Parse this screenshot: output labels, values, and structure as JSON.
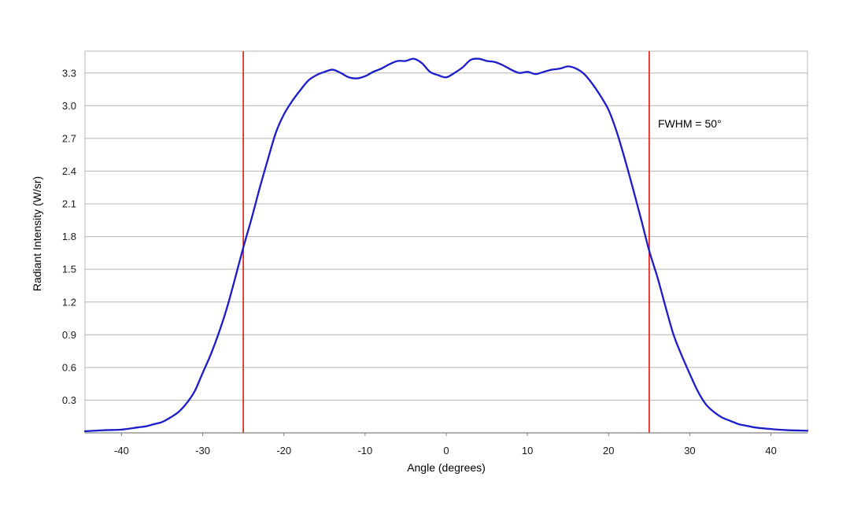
{
  "chart_data": {
    "type": "line",
    "title": "",
    "xlabel": "Angle (degrees)",
    "ylabel": "Radiant Intensity (W/sr)",
    "xlim": [
      -44.5,
      44.5
    ],
    "ylim": [
      0,
      3.5
    ],
    "xticks": [
      -40,
      -30,
      -20,
      -10,
      0,
      10,
      20,
      30,
      40
    ],
    "xtick_labels": [
      "-40",
      "-30",
      "-20",
      "-10",
      "0",
      "10",
      "20",
      "30",
      "40"
    ],
    "yticks": [
      0.3,
      0.6,
      0.9,
      1.2,
      1.5,
      1.8,
      2.1,
      2.4,
      2.7,
      3.0,
      3.3
    ],
    "ytick_labels": [
      "0.3",
      "0.6",
      "0.9",
      "1.2",
      "1.5",
      "1.8",
      "2.1",
      "2.4",
      "2.7",
      "3.0",
      "3.3"
    ],
    "grid": true,
    "series": [
      {
        "x": [
          -44.5,
          -42,
          -40,
          -38,
          -37,
          -36,
          -35,
          -34,
          -33,
          -32,
          -31,
          -30,
          -29,
          -28,
          -27,
          -26,
          -25,
          -24,
          -23,
          -22,
          -21,
          -20,
          -19,
          -18,
          -17,
          -16,
          -15,
          -14,
          -13,
          -12,
          -11,
          -10,
          -9,
          -8,
          -7,
          -6,
          -5,
          -4,
          -3,
          -2,
          -1,
          0,
          1,
          2,
          3,
          4,
          5,
          6,
          7,
          8,
          9,
          10,
          11,
          12,
          13,
          14,
          15,
          16,
          17,
          18,
          19,
          20,
          21,
          22,
          23,
          24,
          25,
          26,
          27,
          28,
          29,
          30,
          31,
          32,
          33,
          34,
          35,
          36,
          37,
          38,
          40,
          42,
          44.5
        ],
        "values": [
          0.015,
          0.025,
          0.03,
          0.05,
          0.06,
          0.08,
          0.1,
          0.14,
          0.19,
          0.27,
          0.38,
          0.55,
          0.72,
          0.92,
          1.15,
          1.42,
          1.7,
          1.96,
          2.24,
          2.5,
          2.75,
          2.92,
          3.04,
          3.14,
          3.23,
          3.28,
          3.31,
          3.33,
          3.3,
          3.26,
          3.25,
          3.27,
          3.31,
          3.34,
          3.38,
          3.41,
          3.41,
          3.43,
          3.39,
          3.31,
          3.28,
          3.26,
          3.3,
          3.35,
          3.42,
          3.43,
          3.41,
          3.4,
          3.37,
          3.33,
          3.3,
          3.31,
          3.29,
          3.31,
          3.33,
          3.34,
          3.36,
          3.34,
          3.29,
          3.2,
          3.09,
          2.96,
          2.76,
          2.51,
          2.24,
          1.96,
          1.67,
          1.43,
          1.16,
          0.9,
          0.71,
          0.54,
          0.38,
          0.26,
          0.19,
          0.14,
          0.11,
          0.08,
          0.065,
          0.05,
          0.035,
          0.025,
          0.02
        ]
      }
    ],
    "vlines": [
      -25,
      25
    ],
    "annotation": "FWHM = 50°"
  },
  "colors": {
    "series": "#1c1ccb",
    "vline": "#e2231a",
    "grid": "#b4b4b4",
    "axis": "#808080",
    "frame": "#b4b4b4"
  }
}
